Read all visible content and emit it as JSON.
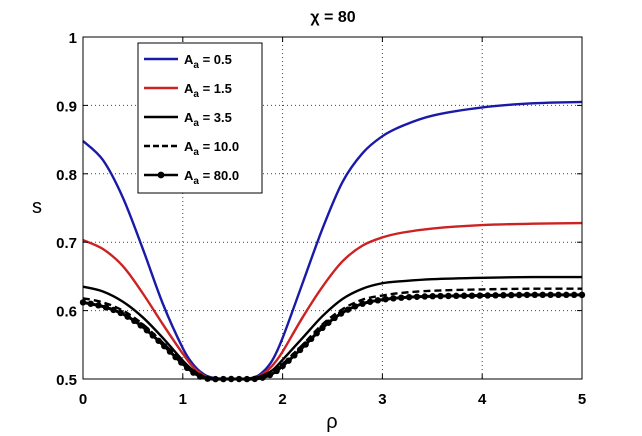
{
  "chart_data": {
    "type": "line",
    "title": "χ = 80",
    "xlabel": "ρ",
    "ylabel": "s",
    "xlim": [
      0,
      5
    ],
    "ylim": [
      0.5,
      1
    ],
    "xticks": [
      "0",
      "1",
      "2",
      "3",
      "4",
      "5"
    ],
    "yticks": [
      "0.5",
      "0.6",
      "0.7",
      "0.8",
      "0.9",
      "1"
    ],
    "grid": true,
    "legend_position": "top-left",
    "series": [
      {
        "name": "A_a = 0.5",
        "color": "#1a1aa8",
        "style": "solid",
        "x": [
          0,
          0.2,
          0.4,
          0.6,
          0.8,
          1.0,
          1.1,
          1.2,
          1.3,
          1.5,
          1.7,
          1.8,
          1.9,
          2.0,
          2.2,
          2.4,
          2.6,
          2.8,
          3.0,
          3.2,
          3.5,
          4.0,
          4.5,
          5.0
        ],
        "y": [
          0.848,
          0.82,
          0.765,
          0.69,
          0.61,
          0.545,
          0.522,
          0.508,
          0.502,
          0.5,
          0.502,
          0.51,
          0.528,
          0.56,
          0.64,
          0.72,
          0.788,
          0.83,
          0.855,
          0.87,
          0.885,
          0.897,
          0.903,
          0.905
        ]
      },
      {
        "name": "A_a = 1.5",
        "color": "#cc2222",
        "style": "solid",
        "x": [
          0,
          0.2,
          0.4,
          0.6,
          0.8,
          1.0,
          1.1,
          1.2,
          1.3,
          1.5,
          1.7,
          1.8,
          1.9,
          2.0,
          2.2,
          2.4,
          2.6,
          2.8,
          3.0,
          3.2,
          3.5,
          4.0,
          4.5,
          5.0
        ],
        "y": [
          0.703,
          0.69,
          0.665,
          0.625,
          0.58,
          0.537,
          0.518,
          0.506,
          0.501,
          0.5,
          0.501,
          0.507,
          0.52,
          0.54,
          0.59,
          0.635,
          0.672,
          0.695,
          0.707,
          0.714,
          0.72,
          0.725,
          0.727,
          0.728
        ]
      },
      {
        "name": "A_a = 3.5",
        "color": "#000000",
        "style": "solid",
        "x": [
          0,
          0.2,
          0.4,
          0.6,
          0.8,
          1.0,
          1.1,
          1.2,
          1.3,
          1.5,
          1.7,
          1.8,
          1.9,
          2.0,
          2.2,
          2.4,
          2.6,
          2.8,
          3.0,
          3.2,
          3.5,
          4.0,
          4.5,
          5.0
        ],
        "y": [
          0.635,
          0.628,
          0.613,
          0.59,
          0.56,
          0.527,
          0.513,
          0.504,
          0.501,
          0.5,
          0.501,
          0.505,
          0.513,
          0.528,
          0.56,
          0.592,
          0.617,
          0.632,
          0.64,
          0.643,
          0.646,
          0.648,
          0.649,
          0.649
        ]
      },
      {
        "name": "A_a = 10.0",
        "color": "#000000",
        "style": "dashed",
        "x": [
          0,
          0.2,
          0.4,
          0.6,
          0.8,
          1.0,
          1.1,
          1.2,
          1.3,
          1.5,
          1.7,
          1.8,
          1.9,
          2.0,
          2.2,
          2.4,
          2.6,
          2.8,
          3.0,
          3.2,
          3.5,
          4.0,
          4.5,
          5.0
        ],
        "y": [
          0.618,
          0.612,
          0.6,
          0.58,
          0.553,
          0.524,
          0.511,
          0.503,
          0.5,
          0.5,
          0.5,
          0.503,
          0.51,
          0.522,
          0.55,
          0.58,
          0.602,
          0.616,
          0.622,
          0.626,
          0.629,
          0.631,
          0.632,
          0.632
        ]
      },
      {
        "name": "A_a = 80.0",
        "color": "#000000",
        "style": "solid-markers",
        "x": [
          0,
          0.2,
          0.4,
          0.6,
          0.8,
          1.0,
          1.1,
          1.2,
          1.3,
          1.5,
          1.7,
          1.8,
          1.9,
          2.0,
          2.2,
          2.4,
          2.6,
          2.8,
          3.0,
          3.2,
          3.5,
          4.0,
          4.5,
          5.0
        ],
        "y": [
          0.612,
          0.606,
          0.595,
          0.576,
          0.55,
          0.522,
          0.51,
          0.502,
          0.5,
          0.5,
          0.5,
          0.502,
          0.508,
          0.519,
          0.546,
          0.575,
          0.597,
          0.61,
          0.616,
          0.619,
          0.621,
          0.622,
          0.623,
          0.623
        ]
      }
    ]
  }
}
